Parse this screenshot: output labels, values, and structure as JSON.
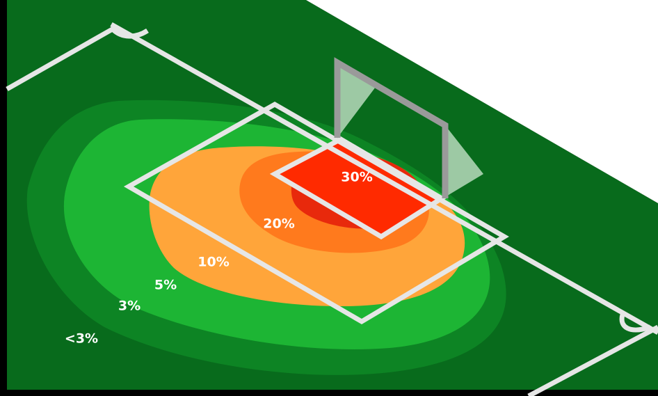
{
  "zones": [
    {
      "label": "30%"
    },
    {
      "label": "20%"
    },
    {
      "label": "10%"
    },
    {
      "label": "5%"
    },
    {
      "label": "3%"
    },
    {
      "label": "<3%"
    }
  ]
}
